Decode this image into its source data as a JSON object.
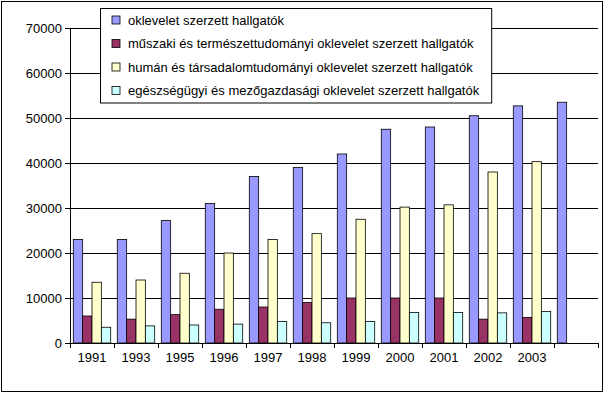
{
  "chart_data": {
    "type": "bar",
    "categories": [
      "1991",
      "1993",
      "1995",
      "1996",
      "1997",
      "1998",
      "1999",
      "2000",
      "2001",
      "2002",
      "2003",
      null
    ],
    "series": [
      {
        "name": "oklevelet szerzett hallgatók",
        "color": "#9999ff",
        "values": [
          23000,
          23000,
          27200,
          31000,
          37000,
          39000,
          42000,
          47500,
          48000,
          50500,
          52700,
          53500
        ]
      },
      {
        "name": "műszaki és természettudományi oklevelet szerzett hallgatók",
        "color": "#993366",
        "values": [
          6000,
          5300,
          6300,
          7500,
          8000,
          9000,
          10000,
          10000,
          10000,
          5300,
          5700,
          null
        ]
      },
      {
        "name": "humán és társadalomtudományi oklevelet szerzett hallgatók",
        "color": "#ffffcc",
        "values": [
          13500,
          14000,
          15500,
          20000,
          23000,
          24300,
          27500,
          30200,
          30700,
          38000,
          40300,
          null
        ]
      },
      {
        "name": "egészségügyi és mezőgazdasági oklevelet szerzett hallgatók",
        "color": "#ccffff",
        "values": [
          3500,
          3800,
          4000,
          4200,
          4800,
          4500,
          4800,
          6800,
          6800,
          6700,
          7000,
          null
        ]
      }
    ],
    "ylim": [
      0,
      70000
    ],
    "yticks": [
      0,
      10000,
      20000,
      30000,
      40000,
      50000,
      60000,
      70000
    ],
    "grid": true,
    "legend": "top-left"
  }
}
